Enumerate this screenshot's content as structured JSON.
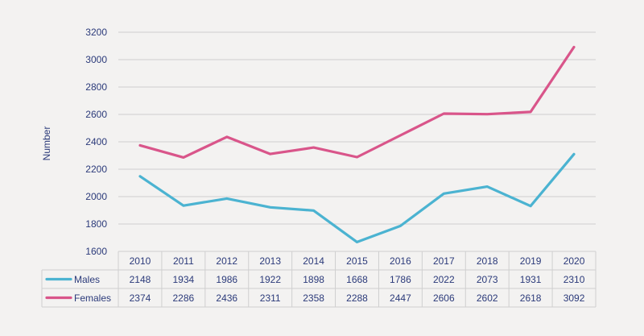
{
  "chart_data": {
    "type": "line",
    "title": "",
    "ylabel": "Number",
    "xlabel": "",
    "ylim": [
      1600,
      3200
    ],
    "yticks": [
      1600,
      1800,
      2000,
      2200,
      2400,
      2600,
      2800,
      3000,
      3200
    ],
    "categories": [
      "2010",
      "2011",
      "2012",
      "2013",
      "2014",
      "2015",
      "2016",
      "2017",
      "2018",
      "2019",
      "2020"
    ],
    "series": [
      {
        "name": "Males",
        "color": "#4bb3d1",
        "values": [
          2148,
          1934,
          1986,
          1922,
          1898,
          1668,
          1786,
          2022,
          2073,
          1931,
          2310
        ]
      },
      {
        "name": "Females",
        "color": "#d9558a",
        "values": [
          2374,
          2286,
          2436,
          2311,
          2358,
          2288,
          2447,
          2606,
          2602,
          2618,
          3092
        ]
      }
    ],
    "grid": true,
    "legend": "data-table"
  }
}
